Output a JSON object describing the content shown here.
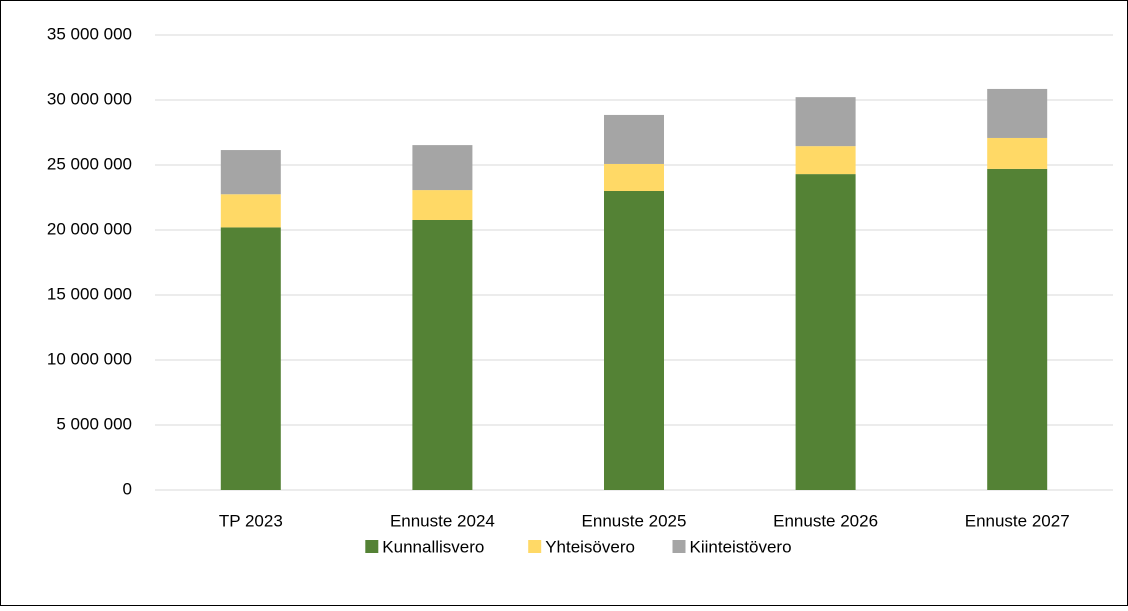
{
  "chart_data": {
    "type": "stacked_bar",
    "categories": [
      "TP 2023",
      "Ennuste 2024",
      "Ennuste 2025",
      "Ennuste 2026",
      "Ennuste 2027"
    ],
    "series": [
      {
        "name": "Kunnallisvero",
        "color": "#548235",
        "values": [
          20200000,
          20770000,
          23000000,
          24300000,
          24700000
        ]
      },
      {
        "name": "Yhteisövero",
        "color": "#ffd966",
        "values": [
          2550000,
          2300000,
          2080000,
          2150000,
          2380000
        ]
      },
      {
        "name": "Kiinteistövero",
        "color": "#a5a5a5",
        "values": [
          3400000,
          3460000,
          3770000,
          3770000,
          3770000
        ]
      }
    ],
    "ylim": [
      0,
      35000000
    ],
    "yticks": [
      {
        "value": 0,
        "label": "0"
      },
      {
        "value": 5000000,
        "label": "5 000 000"
      },
      {
        "value": 10000000,
        "label": "10 000 000"
      },
      {
        "value": 15000000,
        "label": "15 000 000"
      },
      {
        "value": 20000000,
        "label": "20 000 000"
      },
      {
        "value": 25000000,
        "label": "25 000 000"
      },
      {
        "value": 30000000,
        "label": "30 000 000"
      },
      {
        "value": 35000000,
        "label": "35 000 000"
      }
    ],
    "grid": true,
    "legend": "bottom"
  }
}
